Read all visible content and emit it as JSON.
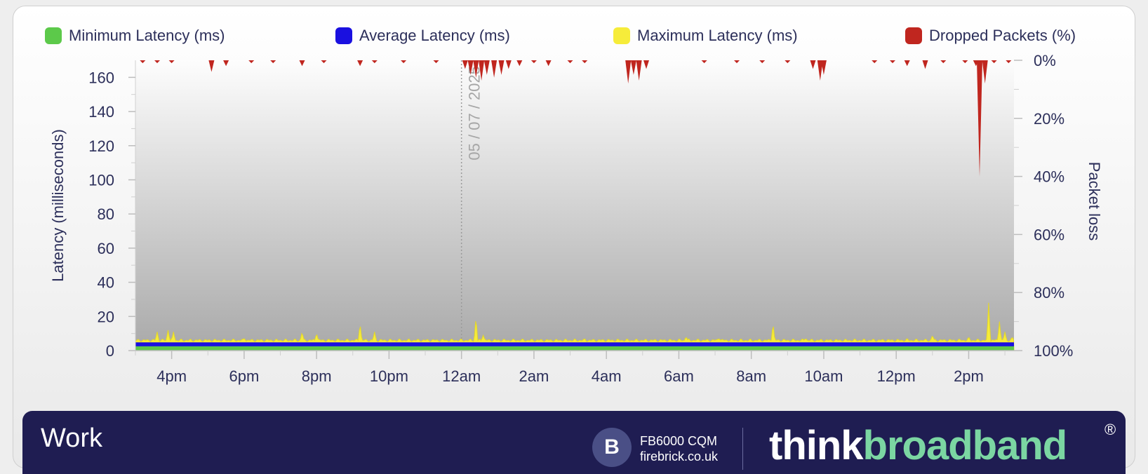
{
  "chart_data": {
    "type": "area",
    "legend": [
      {
        "label": "Minimum Latency (ms)",
        "color": "#5cc94a"
      },
      {
        "label": "Average Latency (ms)",
        "color": "#1a10e0"
      },
      {
        "label": "Maximum Latency (ms)",
        "color": "#f6ec3a"
      },
      {
        "label": "Dropped Packets (%)",
        "color": "#c0261f"
      }
    ],
    "ylabel_left": "Latency  (milliseconds)",
    "ylabel_right": "Packet loss",
    "y_left": {
      "min": 0,
      "max": 170,
      "ticks": [
        "0",
        "20",
        "40",
        "60",
        "80",
        "100",
        "120",
        "140",
        "160"
      ],
      "tick_values": [
        0,
        20,
        40,
        60,
        80,
        100,
        120,
        140,
        160
      ]
    },
    "y_right": {
      "min": 0,
      "max": 100,
      "ticks": [
        "0%",
        "20%",
        "40%",
        "60%",
        "80%",
        "100%"
      ],
      "tick_values": [
        0,
        20,
        40,
        60,
        80,
        100
      ],
      "inverted": true
    },
    "x_ticks": [
      "4pm",
      "6pm",
      "8pm",
      "10pm",
      "12am",
      "2am",
      "4am",
      "6am",
      "8am",
      "10am",
      "12pm",
      "2pm"
    ],
    "x_tick_hours": [
      16,
      18,
      20,
      22,
      24,
      26,
      28,
      30,
      32,
      34,
      36,
      38
    ],
    "x_range_hours": [
      15,
      39.25
    ],
    "date_marker": {
      "label": "05 / 07 / 2025",
      "hour": 24
    },
    "series": [
      {
        "name": "Minimum Latency (ms)",
        "baseline": 2.5
      },
      {
        "name": "Average Latency (ms)",
        "baseline": 4.8
      },
      {
        "name": "Maximum Latency (ms)",
        "baseline": 6,
        "spikes": [
          [
            15.6,
            11
          ],
          [
            15.9,
            12
          ],
          [
            16.05,
            11
          ],
          [
            18.0,
            7
          ],
          [
            19.6,
            11
          ],
          [
            20.0,
            10
          ],
          [
            21.2,
            16
          ],
          [
            21.6,
            11
          ],
          [
            24.4,
            20
          ],
          [
            24.6,
            9
          ],
          [
            27.4,
            7
          ],
          [
            30.2,
            8
          ],
          [
            31.1,
            7
          ],
          [
            32.6,
            16
          ],
          [
            33.5,
            7
          ],
          [
            36.3,
            7
          ],
          [
            37.0,
            9
          ],
          [
            38.0,
            8
          ],
          [
            38.55,
            28
          ],
          [
            38.85,
            17
          ],
          [
            39.0,
            11
          ],
          [
            39.2,
            8
          ]
        ]
      },
      {
        "name": "Dropped Packets (%)",
        "spikes": [
          [
            15.2,
            1
          ],
          [
            15.6,
            1
          ],
          [
            16.0,
            1
          ],
          [
            17.1,
            4
          ],
          [
            17.5,
            2
          ],
          [
            18.2,
            1
          ],
          [
            18.8,
            1
          ],
          [
            19.6,
            2
          ],
          [
            20.2,
            1
          ],
          [
            21.2,
            2
          ],
          [
            21.6,
            1
          ],
          [
            22.4,
            1
          ],
          [
            23.3,
            1
          ],
          [
            24.1,
            3
          ],
          [
            24.25,
            5
          ],
          [
            24.4,
            6
          ],
          [
            24.55,
            7
          ],
          [
            24.7,
            5
          ],
          [
            24.9,
            6
          ],
          [
            25.1,
            5
          ],
          [
            25.3,
            3
          ],
          [
            25.6,
            2
          ],
          [
            26.0,
            1
          ],
          [
            26.4,
            2
          ],
          [
            27.0,
            1
          ],
          [
            27.4,
            1
          ],
          [
            28.6,
            8
          ],
          [
            28.75,
            5
          ],
          [
            28.9,
            7
          ],
          [
            29.1,
            3
          ],
          [
            30.7,
            1
          ],
          [
            31.6,
            1
          ],
          [
            32.3,
            1
          ],
          [
            33.0,
            1
          ],
          [
            33.7,
            3
          ],
          [
            33.9,
            7
          ],
          [
            34.0,
            5
          ],
          [
            35.4,
            1
          ],
          [
            35.9,
            1
          ],
          [
            36.3,
            2
          ],
          [
            36.8,
            3
          ],
          [
            37.3,
            1
          ],
          [
            37.9,
            1
          ],
          [
            38.2,
            2
          ],
          [
            38.3,
            40
          ],
          [
            38.45,
            8
          ],
          [
            38.7,
            1
          ],
          [
            39.1,
            1
          ]
        ]
      }
    ]
  },
  "footer": {
    "title": "Work",
    "device_line1": "FB6000 CQM",
    "device_line2": "firebrick.co.uk",
    "logo_letter": "B",
    "brand_part1": "think",
    "brand_part2": "broadband",
    "registered": "®"
  }
}
